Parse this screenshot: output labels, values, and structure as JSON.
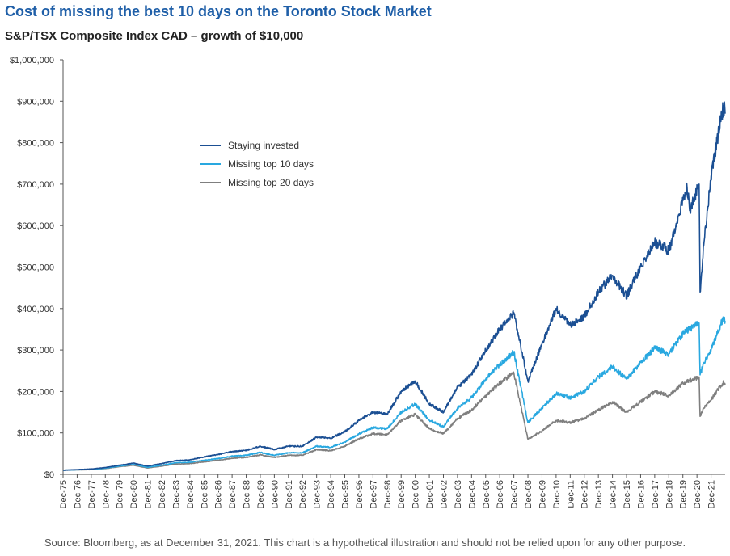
{
  "title": "Cost of missing the best 10 days on the Toronto Stock Market",
  "subtitle": "S&P/TSX Composite Index CAD – growth of $10,000",
  "footer": "Source: Bloomberg, as at December 31, 2021. This chart is a hypothetical illustration and should not be relied upon for any other purpose.",
  "chart_data": {
    "type": "line",
    "ylim": [
      0,
      1000000
    ],
    "yticks": [
      {
        "v": 0,
        "label": "$0"
      },
      {
        "v": 100000,
        "label": "$100,000"
      },
      {
        "v": 200000,
        "label": "$200,000"
      },
      {
        "v": 300000,
        "label": "$300,000"
      },
      {
        "v": 400000,
        "label": "$400,000"
      },
      {
        "v": 500000,
        "label": "$500,000"
      },
      {
        "v": 600000,
        "label": "$600,000"
      },
      {
        "v": 700000,
        "label": "$700,000"
      },
      {
        "v": 800000,
        "label": "$800,000"
      },
      {
        "v": 900000,
        "label": "$900,000"
      },
      {
        "v": 1000000,
        "label": "$1,000,000"
      }
    ],
    "xticks": [
      "Dec-75",
      "Dec-76",
      "Dec-77",
      "Dec-78",
      "Dec-79",
      "Dec-80",
      "Dec-81",
      "Dec-82",
      "Dec-83",
      "Dec-84",
      "Dec-85",
      "Dec-86",
      "Dec-87",
      "Dec-88",
      "Dec-89",
      "Dec-90",
      "Dec-91",
      "Dec-92",
      "Dec-93",
      "Dec-94",
      "Dec-95",
      "Dec-96",
      "Dec-97",
      "Dec-98",
      "Dec-99",
      "Dec-00",
      "Dec-01",
      "Dec-02",
      "Dec-03",
      "Dec-04",
      "Dec-05",
      "Dec-06",
      "Dec-07",
      "Dec-08",
      "Dec-09",
      "Dec-10",
      "Dec-11",
      "Dec-12",
      "Dec-13",
      "Dec-14",
      "Dec-15",
      "Dec-16",
      "Dec-17",
      "Dec-18",
      "Dec-19",
      "Dec-20",
      "Dec-21"
    ],
    "legend_position": "upper-left",
    "grid": false,
    "series": [
      {
        "name": "Staying invested",
        "color": "#1b4f93",
        "points": [
          [
            1975,
            10000
          ],
          [
            1976,
            11500
          ],
          [
            1977,
            13000
          ],
          [
            1978,
            16500
          ],
          [
            1979,
            22000
          ],
          [
            1980,
            27000
          ],
          [
            1981,
            20000
          ],
          [
            1982,
            26000
          ],
          [
            1983,
            33000
          ],
          [
            1984,
            35000
          ],
          [
            1985,
            42000
          ],
          [
            1986,
            48000
          ],
          [
            1987,
            55000
          ],
          [
            1988,
            58000
          ],
          [
            1989,
            68000
          ],
          [
            1990,
            60000
          ],
          [
            1991,
            68000
          ],
          [
            1992,
            68000
          ],
          [
            1993,
            90000
          ],
          [
            1994,
            87000
          ],
          [
            1995,
            103000
          ],
          [
            1996,
            130000
          ],
          [
            1997,
            150000
          ],
          [
            1998,
            145000
          ],
          [
            1999,
            200000
          ],
          [
            2000,
            225000
          ],
          [
            2001,
            170000
          ],
          [
            2002,
            150000
          ],
          [
            2003,
            210000
          ],
          [
            2004,
            240000
          ],
          [
            2005,
            300000
          ],
          [
            2006,
            350000
          ],
          [
            2007,
            390000
          ],
          [
            2008,
            225000
          ],
          [
            2009,
            315000
          ],
          [
            2010,
            400000
          ],
          [
            2011,
            360000
          ],
          [
            2012,
            380000
          ],
          [
            2013,
            440000
          ],
          [
            2014,
            480000
          ],
          [
            2015,
            430000
          ],
          [
            2016,
            500000
          ],
          [
            2017,
            560000
          ],
          [
            2018,
            540000
          ],
          [
            2019,
            660000
          ],
          [
            2019.3,
            690000
          ],
          [
            2019.5,
            640000
          ],
          [
            2020.15,
            700000
          ],
          [
            2020.22,
            440000
          ],
          [
            2020.5,
            560000
          ],
          [
            2021,
            720000
          ],
          [
            2021.5,
            820000
          ],
          [
            2021.9,
            890000
          ],
          [
            2022,
            870000
          ]
        ]
      },
      {
        "name": "Missing top 10 days",
        "color": "#29a8e0",
        "points": [
          [
            1975,
            10000
          ],
          [
            1976,
            11000
          ],
          [
            1977,
            12000
          ],
          [
            1978,
            15000
          ],
          [
            1979,
            20000
          ],
          [
            1980,
            24000
          ],
          [
            1981,
            17000
          ],
          [
            1982,
            22000
          ],
          [
            1983,
            28000
          ],
          [
            1984,
            29000
          ],
          [
            1985,
            34000
          ],
          [
            1986,
            38000
          ],
          [
            1987,
            44000
          ],
          [
            1988,
            46000
          ],
          [
            1989,
            53000
          ],
          [
            1990,
            46000
          ],
          [
            1991,
            52000
          ],
          [
            1992,
            52000
          ],
          [
            1993,
            68000
          ],
          [
            1994,
            65000
          ],
          [
            1995,
            78000
          ],
          [
            1996,
            98000
          ],
          [
            1997,
            113000
          ],
          [
            1998,
            110000
          ],
          [
            1999,
            150000
          ],
          [
            2000,
            170000
          ],
          [
            2001,
            130000
          ],
          [
            2002,
            115000
          ],
          [
            2003,
            160000
          ],
          [
            2004,
            185000
          ],
          [
            2005,
            230000
          ],
          [
            2006,
            265000
          ],
          [
            2007,
            295000
          ],
          [
            2008,
            125000
          ],
          [
            2009,
            160000
          ],
          [
            2010,
            195000
          ],
          [
            2011,
            185000
          ],
          [
            2012,
            200000
          ],
          [
            2013,
            235000
          ],
          [
            2014,
            260000
          ],
          [
            2015,
            230000
          ],
          [
            2016,
            270000
          ],
          [
            2017,
            305000
          ],
          [
            2018,
            290000
          ],
          [
            2019,
            340000
          ],
          [
            2020.15,
            365000
          ],
          [
            2020.22,
            240000
          ],
          [
            2020.5,
            270000
          ],
          [
            2021,
            300000
          ],
          [
            2021.5,
            345000
          ],
          [
            2021.9,
            380000
          ],
          [
            2022,
            370000
          ]
        ]
      },
      {
        "name": "Missing top 20 days",
        "color": "#7f7f7f",
        "points": [
          [
            1975,
            10000
          ],
          [
            1976,
            10800
          ],
          [
            1977,
            11500
          ],
          [
            1978,
            14000
          ],
          [
            1979,
            18500
          ],
          [
            1980,
            22000
          ],
          [
            1981,
            15500
          ],
          [
            1982,
            20000
          ],
          [
            1983,
            25000
          ],
          [
            1984,
            26000
          ],
          [
            1985,
            30000
          ],
          [
            1986,
            34000
          ],
          [
            1987,
            39000
          ],
          [
            1988,
            41000
          ],
          [
            1989,
            47000
          ],
          [
            1990,
            41000
          ],
          [
            1991,
            46000
          ],
          [
            1992,
            46000
          ],
          [
            1993,
            60000
          ],
          [
            1994,
            57000
          ],
          [
            1995,
            68000
          ],
          [
            1996,
            86000
          ],
          [
            1997,
            98000
          ],
          [
            1998,
            96000
          ],
          [
            1999,
            130000
          ],
          [
            2000,
            145000
          ],
          [
            2001,
            110000
          ],
          [
            2002,
            98000
          ],
          [
            2003,
            135000
          ],
          [
            2004,
            155000
          ],
          [
            2005,
            190000
          ],
          [
            2006,
            220000
          ],
          [
            2007,
            245000
          ],
          [
            2008,
            85000
          ],
          [
            2009,
            105000
          ],
          [
            2010,
            130000
          ],
          [
            2011,
            125000
          ],
          [
            2012,
            135000
          ],
          [
            2013,
            155000
          ],
          [
            2014,
            175000
          ],
          [
            2015,
            150000
          ],
          [
            2016,
            175000
          ],
          [
            2017,
            200000
          ],
          [
            2018,
            190000
          ],
          [
            2019,
            220000
          ],
          [
            2020.15,
            235000
          ],
          [
            2020.22,
            140000
          ],
          [
            2020.5,
            160000
          ],
          [
            2021,
            180000
          ],
          [
            2021.5,
            205000
          ],
          [
            2021.9,
            222000
          ],
          [
            2022,
            215000
          ]
        ]
      }
    ]
  }
}
